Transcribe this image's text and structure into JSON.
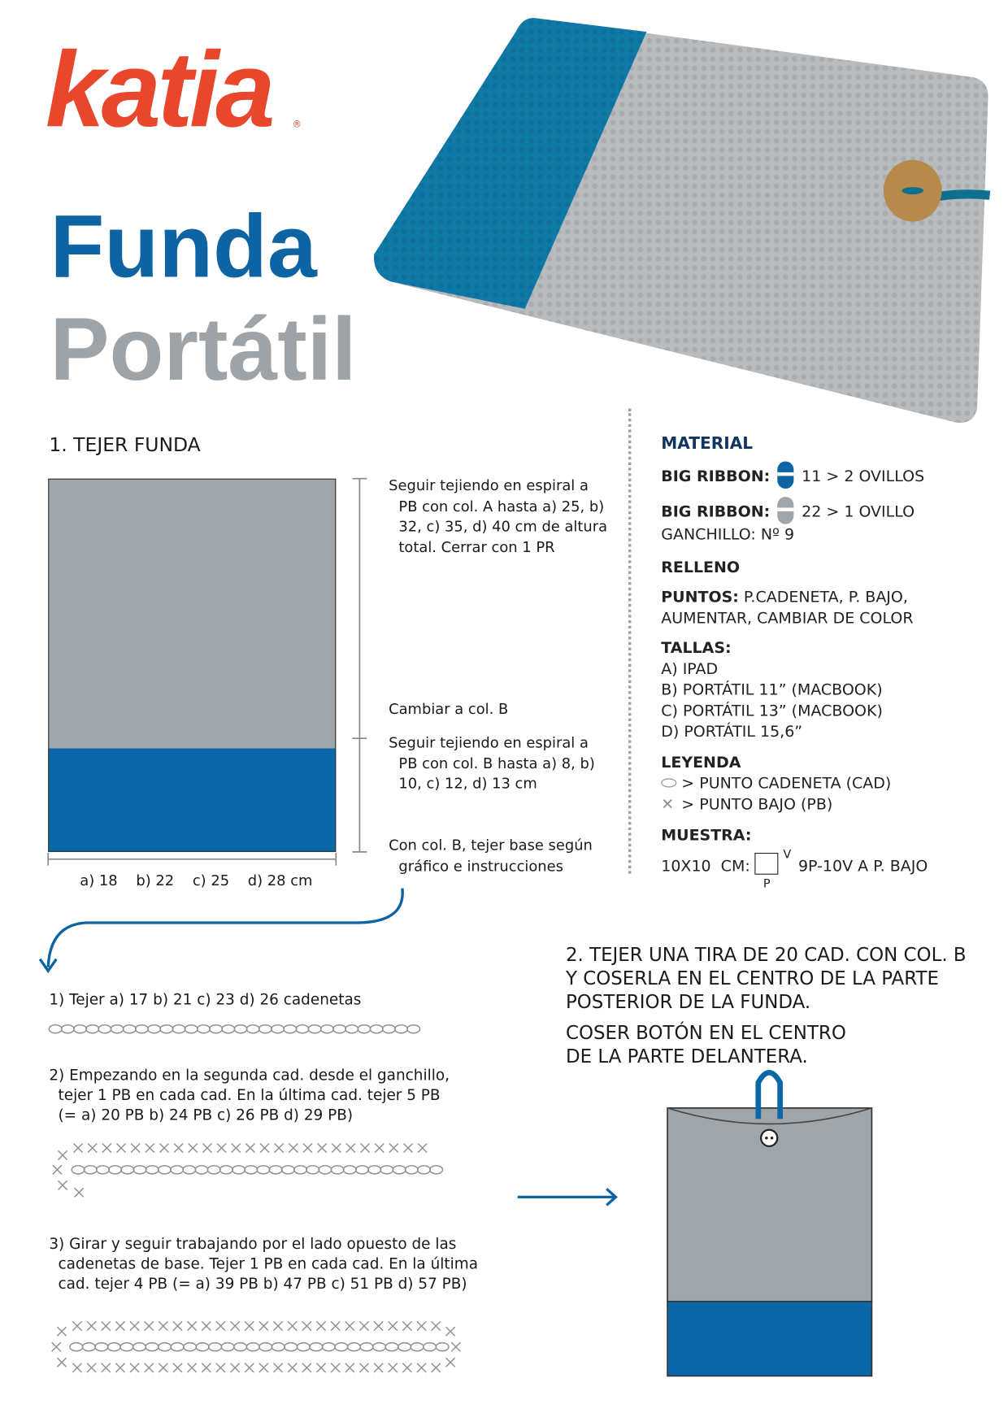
{
  "logo": {
    "text": "katia",
    "brand_color": "#e8472b"
  },
  "title": {
    "line1": "Funda",
    "line2": "Portátil",
    "color1": "#0e63a3",
    "color2": "#9ea3a8"
  },
  "section1": {
    "heading": "1. TEJER FUNDA",
    "notes": [
      {
        "first": "Seguir tejiendo en espiral a",
        "rest": [
          "PB con col. A hasta a) 25, b)",
          "32, c) 35, d) 40 cm de altura",
          "total. Cerrar con 1 PR"
        ]
      },
      {
        "first": "Cambiar a col. B",
        "rest": []
      },
      {
        "first": "Seguir tejiendo en espiral a",
        "rest": [
          "PB con col. B hasta a) 8, b)",
          "10, c) 12, d) 13 cm"
        ]
      },
      {
        "first": "Con col. B, tejer base según",
        "rest": [
          "gráfico e instrucciones"
        ]
      }
    ],
    "width_label": "a) 18    b) 22    c) 25    d) 28 cm",
    "color_a": "#a0a5aa",
    "color_b": "#0a67a8"
  },
  "material": {
    "heading": "MATERIAL",
    "yarn1": {
      "label": "BIG RIBBON:",
      "value": "11 > 2 OVILLOS",
      "color": "#0e63a3"
    },
    "yarn2": {
      "label": "BIG RIBBON:",
      "value": "22 > 1 OVILLO",
      "color": "#a0a5aa"
    },
    "hook": "GANCHILLO: Nº 9",
    "relleno": "RELLENO",
    "puntos_label": "PUNTOS:",
    "puntos_value": "P.CADENETA, P. BAJO,",
    "puntos_value2": "AUMENTAR, CAMBIAR DE COLOR",
    "tallas_label": "TALLAS:",
    "tallas": [
      "A) IPAD",
      "B) PORTÁTIL 11” (MACBOOK)",
      "C) PORTÁTIL 13” (MACBOOK)",
      "D) PORTÁTIL 15,6”"
    ],
    "leyenda_label": "LEYENDA",
    "leyenda": [
      "> PUNTO CADENETA (CAD)",
      "> PUNTO BAJO (PB)"
    ],
    "muestra_label": "MUESTRA:",
    "muestra_prefix": "10X10  CM:",
    "muestra_v": "V",
    "muestra_p": "P",
    "muestra_value": "9P-10V A P. BAJO"
  },
  "steps": [
    {
      "first": "1) Tejer a) 17 b) 21 c) 23 d) 26 cadenetas",
      "rest": []
    },
    {
      "first": "2) Empezando en la segunda cad. desde el ganchillo,",
      "rest": [
        "tejer 1 PB en cada cad. En la última cad. tejer 5 PB",
        "(= a) 20 PB b) 24 PB c) 26 PB d) 29 PB)"
      ]
    },
    {
      "first": "3) Girar y seguir trabajando por el lado opuesto de las",
      "rest": [
        "cadenetas de base. Tejer 1 PB en cada cad. En la última",
        "cad. tejer 4 PB (= a) 39 PB b) 47 PB c) 51 PB d) 57 PB)"
      ]
    }
  ],
  "section2": {
    "lines": [
      "2. TEJER UNA TIRA DE 20 CAD. CON COL. B",
      "Y COSERLA EN EL CENTRO DE LA PARTE",
      "POSTERIOR DE LA FUNDA."
    ],
    "lines2": [
      "COSER BOTÓN EN EL CENTRO",
      "DE LA PARTE DELANTERA."
    ]
  }
}
